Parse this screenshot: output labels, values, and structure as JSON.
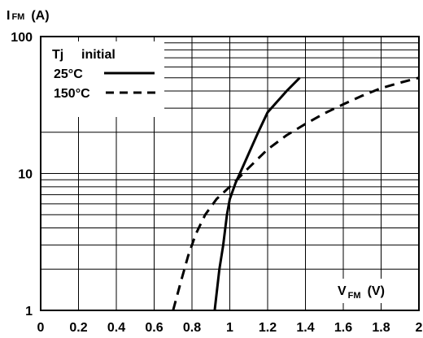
{
  "chart_data": {
    "type": "line",
    "y_scale": "log",
    "xlim": [
      0,
      2
    ],
    "ylim": [
      1,
      100
    ],
    "grid": true,
    "legend_placement": "top-left",
    "y_label": {
      "main": "I",
      "sub": "FM",
      "unit": "(A)"
    },
    "x_label": {
      "main": "V",
      "sub": "FM",
      "unit": "(V)"
    },
    "x_ticks": [
      {
        "v": 0,
        "label": "0"
      },
      {
        "v": 0.2,
        "label": "0.2"
      },
      {
        "v": 0.4,
        "label": "0.4"
      },
      {
        "v": 0.6,
        "label": "0.6"
      },
      {
        "v": 0.8,
        "label": "0.8"
      },
      {
        "v": 1,
        "label": "1"
      },
      {
        "v": 1.2,
        "label": "1.2"
      },
      {
        "v": 1.4,
        "label": "1.4"
      },
      {
        "v": 1.6,
        "label": "1.6"
      },
      {
        "v": 1.8,
        "label": "1.8"
      },
      {
        "v": 2,
        "label": "2"
      }
    ],
    "y_ticks": [
      {
        "v": 1,
        "label": "1"
      },
      {
        "v": 10,
        "label": "10"
      },
      {
        "v": 100,
        "label": "100"
      }
    ],
    "legend": {
      "title_left": "Tj",
      "title_right": "initial",
      "entries": [
        {
          "series": 0,
          "label": "25°C"
        },
        {
          "series": 1,
          "label": "150°C"
        }
      ]
    },
    "series": [
      {
        "style": "solid",
        "points": [
          [
            0.92,
            1
          ],
          [
            0.945,
            2
          ],
          [
            0.965,
            3
          ],
          [
            0.985,
            5
          ],
          [
            1.0,
            6.5
          ],
          [
            1.03,
            8.5
          ],
          [
            1.06,
            10.5
          ],
          [
            1.1,
            14
          ],
          [
            1.15,
            20
          ],
          [
            1.2,
            28
          ],
          [
            1.3,
            40
          ],
          [
            1.37,
            50
          ]
        ]
      },
      {
        "style": "dashed",
        "points": [
          [
            0.7,
            1
          ],
          [
            0.74,
            1.6
          ],
          [
            0.78,
            2.5
          ],
          [
            0.82,
            3.6
          ],
          [
            0.87,
            5
          ],
          [
            0.93,
            6.5
          ],
          [
            1.0,
            8
          ],
          [
            1.1,
            11
          ],
          [
            1.2,
            15
          ],
          [
            1.3,
            19
          ],
          [
            1.4,
            23
          ],
          [
            1.5,
            27.5
          ],
          [
            1.6,
            32
          ],
          [
            1.7,
            37
          ],
          [
            1.8,
            42
          ],
          [
            1.9,
            46
          ],
          [
            2.0,
            50
          ]
        ]
      }
    ]
  }
}
